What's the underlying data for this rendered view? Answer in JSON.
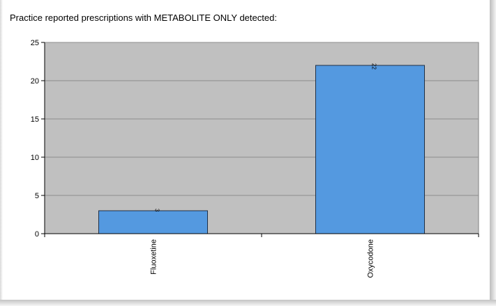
{
  "chart_data": {
    "type": "bar",
    "title": "Practice reported prescriptions with METABOLITE ONLY detected:",
    "categories": [
      "Fluoxetine",
      "Oxycodone"
    ],
    "values": [
      3,
      22
    ],
    "data_labels": [
      "3",
      "22"
    ],
    "ylim": [
      0,
      25
    ],
    "yticks": [
      "0",
      "5",
      "10",
      "15",
      "20",
      "25"
    ],
    "xlabel": "",
    "ylabel": "",
    "grid": true,
    "legend": "none",
    "colors": {
      "plot_area": "#c0c0c0",
      "bar_fill": "#5499e0",
      "bar_stroke": "#1f2f45",
      "gridline": "#8c8c8c"
    }
  }
}
